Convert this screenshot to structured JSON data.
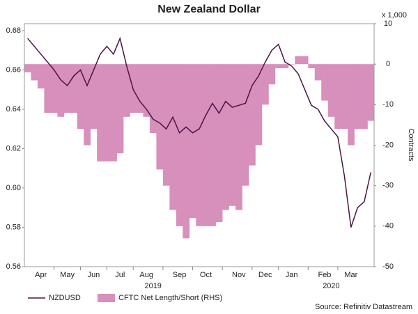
{
  "chart_data": {
    "type": "line",
    "title": "New Zealand Dollar",
    "y2_unit": "x 1,000",
    "y2_label": "Contracts",
    "source": "Source: Refinitiv Datastream",
    "year_labels": [
      "2019",
      "2020"
    ],
    "categories": [
      null,
      null,
      "Apr",
      null,
      null,
      null,
      "May",
      null,
      null,
      null,
      "Jun",
      null,
      null,
      null,
      "Jul",
      null,
      null,
      null,
      "Aug",
      null,
      null,
      null,
      null,
      "Sep",
      null,
      null,
      null,
      "Oct",
      null,
      null,
      null,
      null,
      "Nov",
      null,
      null,
      null,
      "Dec",
      null,
      null,
      null,
      "Jan",
      null,
      null,
      null,
      null,
      "Feb",
      null,
      null,
      null,
      "Mar",
      null,
      null,
      null
    ],
    "series": [
      {
        "name": "NZDUSD",
        "type": "line",
        "color": "#4b1446",
        "values": [
          0.676,
          0.672,
          0.668,
          0.664,
          0.66,
          0.655,
          0.652,
          0.657,
          0.66,
          0.652,
          0.66,
          0.668,
          0.672,
          0.668,
          0.676,
          0.662,
          0.65,
          0.644,
          0.64,
          0.635,
          0.633,
          0.63,
          0.636,
          0.628,
          0.631,
          0.628,
          0.63,
          0.637,
          0.643,
          0.638,
          0.644,
          0.641,
          0.642,
          0.643,
          0.652,
          0.657,
          0.664,
          0.67,
          0.673,
          0.664,
          0.662,
          0.658,
          0.65,
          0.642,
          0.64,
          0.634,
          0.63,
          0.626,
          0.606,
          0.58,
          0.59,
          0.593,
          0.608
        ]
      },
      {
        "name": "CFTC Net Length/Short (RHS)",
        "type": "bar",
        "axis": "y2",
        "color": "#d78fbb",
        "values": [
          -2,
          -4,
          -6,
          -12,
          -12,
          -13,
          -12,
          -12,
          -16,
          -20,
          -16,
          -24,
          -24,
          -24,
          -22,
          -13,
          -12,
          -12,
          -13,
          -17,
          -26,
          -30,
          -36,
          -40,
          -43,
          -38,
          -40,
          -40,
          -40,
          -39,
          -36,
          -35,
          -36,
          -30,
          -25,
          -20,
          -10,
          -5,
          -1,
          -1,
          0,
          2,
          2,
          -1,
          -4,
          -9,
          -13,
          -16,
          -16,
          -20,
          -16,
          -16,
          -14
        ]
      }
    ],
    "ylim": [
      0.56,
      0.6835
    ],
    "yticks": [
      0.56,
      0.58,
      {
        "value": 0.6,
        "label": "0.60"
      },
      0.62,
      0.64,
      0.66,
      0.68
    ],
    "y2lim": [
      -50,
      10
    ],
    "y2ticks": [
      10,
      0,
      -10,
      -20,
      -30,
      -40,
      -50
    ]
  }
}
